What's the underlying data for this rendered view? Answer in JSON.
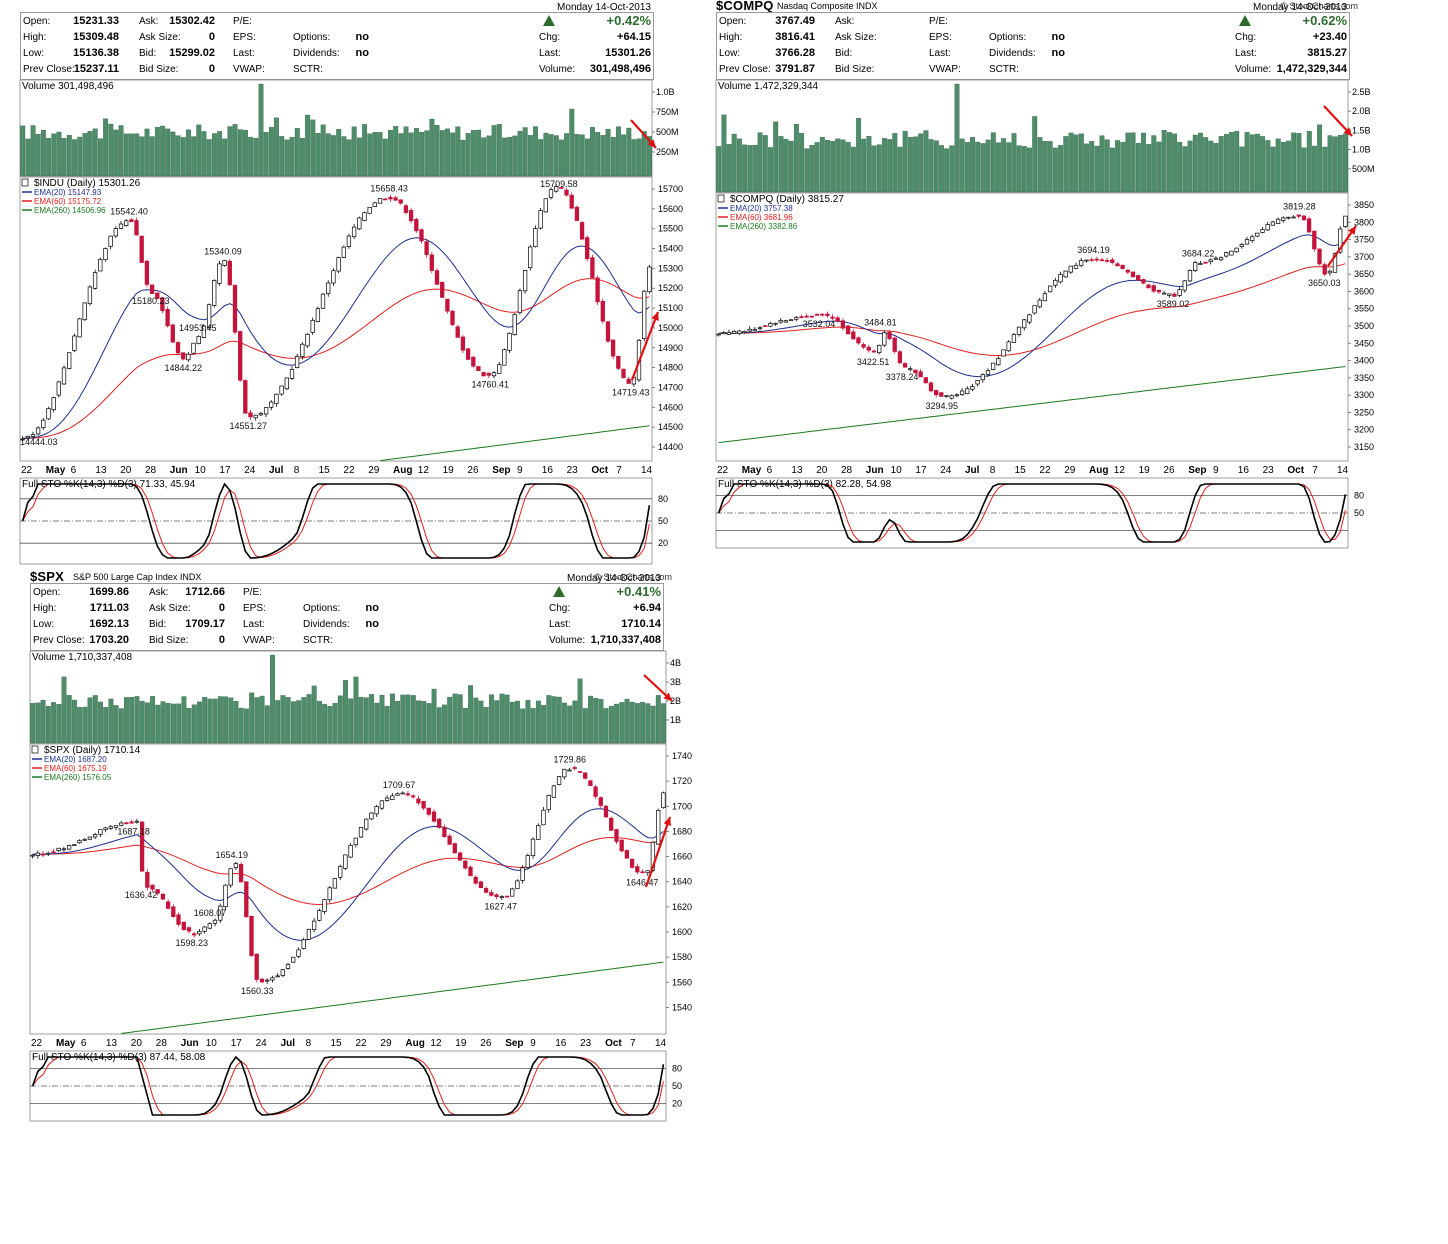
{
  "panels": [
    {
      "id": "indu",
      "symbol": "",
      "name": "",
      "brand": "",
      "quote": {
        "date": "Monday  14-Oct-2013",
        "change_pct": "+0.42%",
        "rows": [
          [
            [
              "Open:",
              "15231.33"
            ],
            [
              "Ask:",
              "15302.42"
            ],
            [
              "P/E:",
              ""
            ],
            [
              "",
              ""
            ]
          ],
          [
            [
              "High:",
              "15309.48"
            ],
            [
              "Ask Size:",
              "0"
            ],
            [
              "EPS:",
              ""
            ],
            [
              "Options:",
              "no"
            ]
          ],
          [
            [
              "Low:",
              "15136.38"
            ],
            [
              "Bid:",
              "15299.02"
            ],
            [
              "Last:",
              ""
            ],
            [
              "Dividends:",
              "no"
            ]
          ],
          [
            [
              "Prev Close:",
              "15237.11"
            ],
            [
              "Bid Size:",
              "0"
            ],
            [
              "VWAP:",
              ""
            ],
            [
              "SCTR:",
              ""
            ]
          ]
        ],
        "right": [
          [
            "Chg:",
            "+64.15"
          ],
          [
            "Last:",
            "15301.26"
          ],
          [
            "Volume:",
            "301,498,496"
          ]
        ]
      },
      "volume_label": "Volume 301,498,496",
      "volume_ticks": [
        "1.0B",
        "750M",
        "500M",
        "250M"
      ],
      "price_legend": [
        "$INDU (Daily) 15301.26",
        "EMA(20) 15147.93",
        "EMA(60) 15175.72",
        "EMA(260) 14506.96"
      ],
      "price_ticks": [
        "15700",
        "15600",
        "15500",
        "15400",
        "15300",
        "15200",
        "15100",
        "15000",
        "14900",
        "14800",
        "14700",
        "14600",
        "14500",
        "14400"
      ],
      "annotations": [
        "15658.43",
        "15709.58",
        "15542.40",
        "15340.09",
        "15180.23",
        "14953.45",
        "14844.22",
        "14551.27",
        "14760.41",
        "14719.43",
        "14444.03"
      ],
      "x_labels": [
        "22",
        "May",
        "6",
        "13",
        "20",
        "28",
        "Jun",
        "10",
        "17",
        "24",
        "Jul",
        "8",
        "15",
        "22",
        "29",
        "Aug",
        "12",
        "19",
        "26",
        "Sep",
        "9",
        "16",
        "23",
        "Oct",
        "7",
        "14"
      ],
      "sto_label": "Full STO %K(14,3) %D(3) 71.33, 45.94",
      "sto_ticks": [
        "80",
        "50",
        "20"
      ]
    },
    {
      "id": "compq",
      "symbol": "$COMPQ",
      "name": "Nasdaq Composite INDX",
      "brand": "© StockCharts.com",
      "quote": {
        "date": "Monday  14-Oct-2013",
        "change_pct": "+0.62%",
        "rows": [
          [
            [
              "Open:",
              "3767.49"
            ],
            [
              "Ask:",
              ""
            ],
            [
              "P/E:",
              ""
            ],
            [
              "",
              ""
            ]
          ],
          [
            [
              "High:",
              "3816.41"
            ],
            [
              "Ask Size:",
              ""
            ],
            [
              "EPS:",
              ""
            ],
            [
              "Options:",
              "no"
            ]
          ],
          [
            [
              "Low:",
              "3766.28"
            ],
            [
              "Bid:",
              ""
            ],
            [
              "Last:",
              ""
            ],
            [
              "Dividends:",
              "no"
            ]
          ],
          [
            [
              "Prev Close:",
              "3791.87"
            ],
            [
              "Bid Size:",
              ""
            ],
            [
              "VWAP:",
              ""
            ],
            [
              "SCTR:",
              ""
            ]
          ]
        ],
        "right": [
          [
            "Chg:",
            "+23.40"
          ],
          [
            "Last:",
            "3815.27"
          ],
          [
            "Volume:",
            "1,472,329,344"
          ]
        ]
      },
      "volume_label": "Volume 1,472,329,344",
      "volume_ticks": [
        "2.5B",
        "2.0B",
        "1.5B",
        "1.0B",
        "500M"
      ],
      "price_legend": [
        "$COMPQ (Daily) 3815.27",
        "EMA(20) 3757.38",
        "EMA(60) 3681.96",
        "EMA(260) 3382.86"
      ],
      "price_ticks": [
        "3850",
        "3800",
        "3750",
        "3700",
        "3650",
        "3600",
        "3550",
        "3500",
        "3450",
        "3400",
        "3350",
        "3300",
        "3250",
        "3200",
        "3150"
      ],
      "annotations": [
        "3819.28",
        "3694.19",
        "3684.22",
        "3532.04",
        "3484.81",
        "3422.51",
        "3378.24",
        "3294.95",
        "3589.02",
        "3650.03"
      ],
      "x_labels": [
        "22",
        "May",
        "6",
        "13",
        "20",
        "28",
        "Jun",
        "10",
        "17",
        "24",
        "Jul",
        "8",
        "15",
        "22",
        "29",
        "Aug",
        "12",
        "19",
        "26",
        "Sep",
        "9",
        "16",
        "23",
        "Oct",
        "7",
        "14"
      ],
      "sto_label": "Full STO %K(14,3) %D(3) 82.28, 54.98",
      "sto_ticks": [
        "80",
        "50"
      ]
    },
    {
      "id": "spx",
      "symbol": "$SPX",
      "name": "S&P 500 Large Cap Index INDX",
      "brand": "© StockCharts.com",
      "quote": {
        "date": "Monday  14-Oct-2013",
        "change_pct": "+0.41%",
        "rows": [
          [
            [
              "Open:",
              "1699.86"
            ],
            [
              "Ask:",
              "1712.66"
            ],
            [
              "P/E:",
              ""
            ],
            [
              "",
              ""
            ]
          ],
          [
            [
              "High:",
              "1711.03"
            ],
            [
              "Ask Size:",
              "0"
            ],
            [
              "EPS:",
              ""
            ],
            [
              "Options:",
              "no"
            ]
          ],
          [
            [
              "Low:",
              "1692.13"
            ],
            [
              "Bid:",
              "1709.17"
            ],
            [
              "Last:",
              ""
            ],
            [
              "Dividends:",
              "no"
            ]
          ],
          [
            [
              "Prev Close:",
              "1703.20"
            ],
            [
              "Bid Size:",
              "0"
            ],
            [
              "VWAP:",
              ""
            ],
            [
              "SCTR:",
              ""
            ]
          ]
        ],
        "right": [
          [
            "Chg:",
            "+6.94"
          ],
          [
            "Last:",
            "1710.14"
          ],
          [
            "Volume:",
            "1,710,337,408"
          ]
        ]
      },
      "volume_label": "Volume 1,710,337,408",
      "volume_ticks": [
        "4B",
        "3B",
        "2B",
        "1B"
      ],
      "price_legend": [
        "$SPX (Daily) 1710.14",
        "EMA(20) 1687.20",
        "EMA(60) 1675.19",
        "EMA(260) 1576.05"
      ],
      "price_ticks": [
        "1740",
        "1720",
        "1700",
        "1680",
        "1660",
        "1640",
        "1620",
        "1600",
        "1580",
        "1560",
        "1540"
      ],
      "annotations": [
        "1729.86",
        "1709.67",
        "1687.18",
        "1654.19",
        "1636.42",
        "1608.07",
        "1598.23",
        "1560.33",
        "1627.47",
        "1646.47"
      ],
      "x_labels": [
        "22",
        "May",
        "6",
        "13",
        "20",
        "28",
        "Jun",
        "10",
        "17",
        "24",
        "Jul",
        "8",
        "15",
        "22",
        "29",
        "Aug",
        "12",
        "19",
        "26",
        "Sep",
        "9",
        "16",
        "23",
        "Oct",
        "7",
        "14"
      ],
      "sto_label": "Full STO %K(14,3) %D(3) 87.44, 58.08",
      "sto_ticks": [
        "80",
        "50",
        "20"
      ]
    }
  ],
  "colors": {
    "up": "#000000",
    "down": "#c4143c",
    "volume": "#4e8c6a",
    "ema20": "#1f2e8c",
    "ema60": "#e02020",
    "ema260": "#1d7a1d",
    "arrow": "#e01010",
    "gain": "#2e6b2e"
  },
  "chart_data": [
    {
      "type": "candlestick",
      "title": "$INDU (Daily) 15301.26",
      "x_range": [
        "2013-04-22",
        "2013-10-14"
      ],
      "ylim": [
        14400,
        15700
      ],
      "key_points": [
        {
          "x": "2013-04-22",
          "y": 14444.03
        },
        {
          "x": "2013-05-22",
          "y": 15542.4
        },
        {
          "x": "2013-05-28",
          "y": 15180.23
        },
        {
          "x": "2013-06-06",
          "y": 14844.22
        },
        {
          "x": "2013-06-10",
          "y": 14953.45
        },
        {
          "x": "2013-06-17",
          "y": 15340.09
        },
        {
          "x": "2013-06-24",
          "y": 14551.27
        },
        {
          "x": "2013-08-02",
          "y": 15658.43
        },
        {
          "x": "2013-08-30",
          "y": 14760.41
        },
        {
          "x": "2013-09-18",
          "y": 15709.58
        },
        {
          "x": "2013-10-09",
          "y": 14719.43
        },
        {
          "x": "2013-10-14",
          "y": 15301.26
        }
      ],
      "ema": [
        {
          "name": "EMA(20)",
          "last": 15147.93
        },
        {
          "name": "EMA(60)",
          "last": 15175.72
        },
        {
          "name": "EMA(260)",
          "last": 14506.96
        }
      ],
      "stochastic": {
        "k": 71.33,
        "d": 45.94
      }
    },
    {
      "type": "candlestick",
      "title": "$COMPQ (Daily) 3815.27",
      "x_range": [
        "2013-04-22",
        "2013-10-14"
      ],
      "ylim": [
        3150,
        3850
      ],
      "key_points": [
        {
          "x": "2013-05-21",
          "y": 3532.04
        },
        {
          "x": "2013-06-05",
          "y": 3422.51
        },
        {
          "x": "2013-06-07",
          "y": 3484.81
        },
        {
          "x": "2013-06-13",
          "y": 3378.24
        },
        {
          "x": "2013-06-24",
          "y": 3294.95
        },
        {
          "x": "2013-08-05",
          "y": 3694.19
        },
        {
          "x": "2013-08-27",
          "y": 3589.02
        },
        {
          "x": "2013-09-03",
          "y": 3684.22
        },
        {
          "x": "2013-10-01",
          "y": 3819.28
        },
        {
          "x": "2013-10-09",
          "y": 3650.03
        },
        {
          "x": "2013-10-14",
          "y": 3815.27
        }
      ],
      "ema": [
        {
          "name": "EMA(20)",
          "last": 3757.38
        },
        {
          "name": "EMA(60)",
          "last": 3681.96
        },
        {
          "name": "EMA(260)",
          "last": 3382.86
        }
      ],
      "stochastic": {
        "k": 82.28,
        "d": 54.98
      }
    },
    {
      "type": "candlestick",
      "title": "$SPX (Daily) 1710.14",
      "x_range": [
        "2013-04-22",
        "2013-10-14"
      ],
      "ylim": [
        1530,
        1740
      ],
      "key_points": [
        {
          "x": "2013-05-21",
          "y": 1687.18
        },
        {
          "x": "2013-05-23",
          "y": 1636.42
        },
        {
          "x": "2013-06-06",
          "y": 1598.23
        },
        {
          "x": "2013-06-11",
          "y": 1608.07
        },
        {
          "x": "2013-06-17",
          "y": 1654.19
        },
        {
          "x": "2013-06-24",
          "y": 1560.33
        },
        {
          "x": "2013-08-02",
          "y": 1709.67
        },
        {
          "x": "2013-08-30",
          "y": 1627.47
        },
        {
          "x": "2013-09-18",
          "y": 1729.86
        },
        {
          "x": "2013-10-09",
          "y": 1646.47
        },
        {
          "x": "2013-10-14",
          "y": 1710.14
        }
      ],
      "ema": [
        {
          "name": "EMA(20)",
          "last": 1687.2
        },
        {
          "name": "EMA(60)",
          "last": 1675.19
        },
        {
          "name": "EMA(260)",
          "last": 1576.05
        }
      ],
      "stochastic": {
        "k": 87.44,
        "d": 58.08
      }
    }
  ]
}
